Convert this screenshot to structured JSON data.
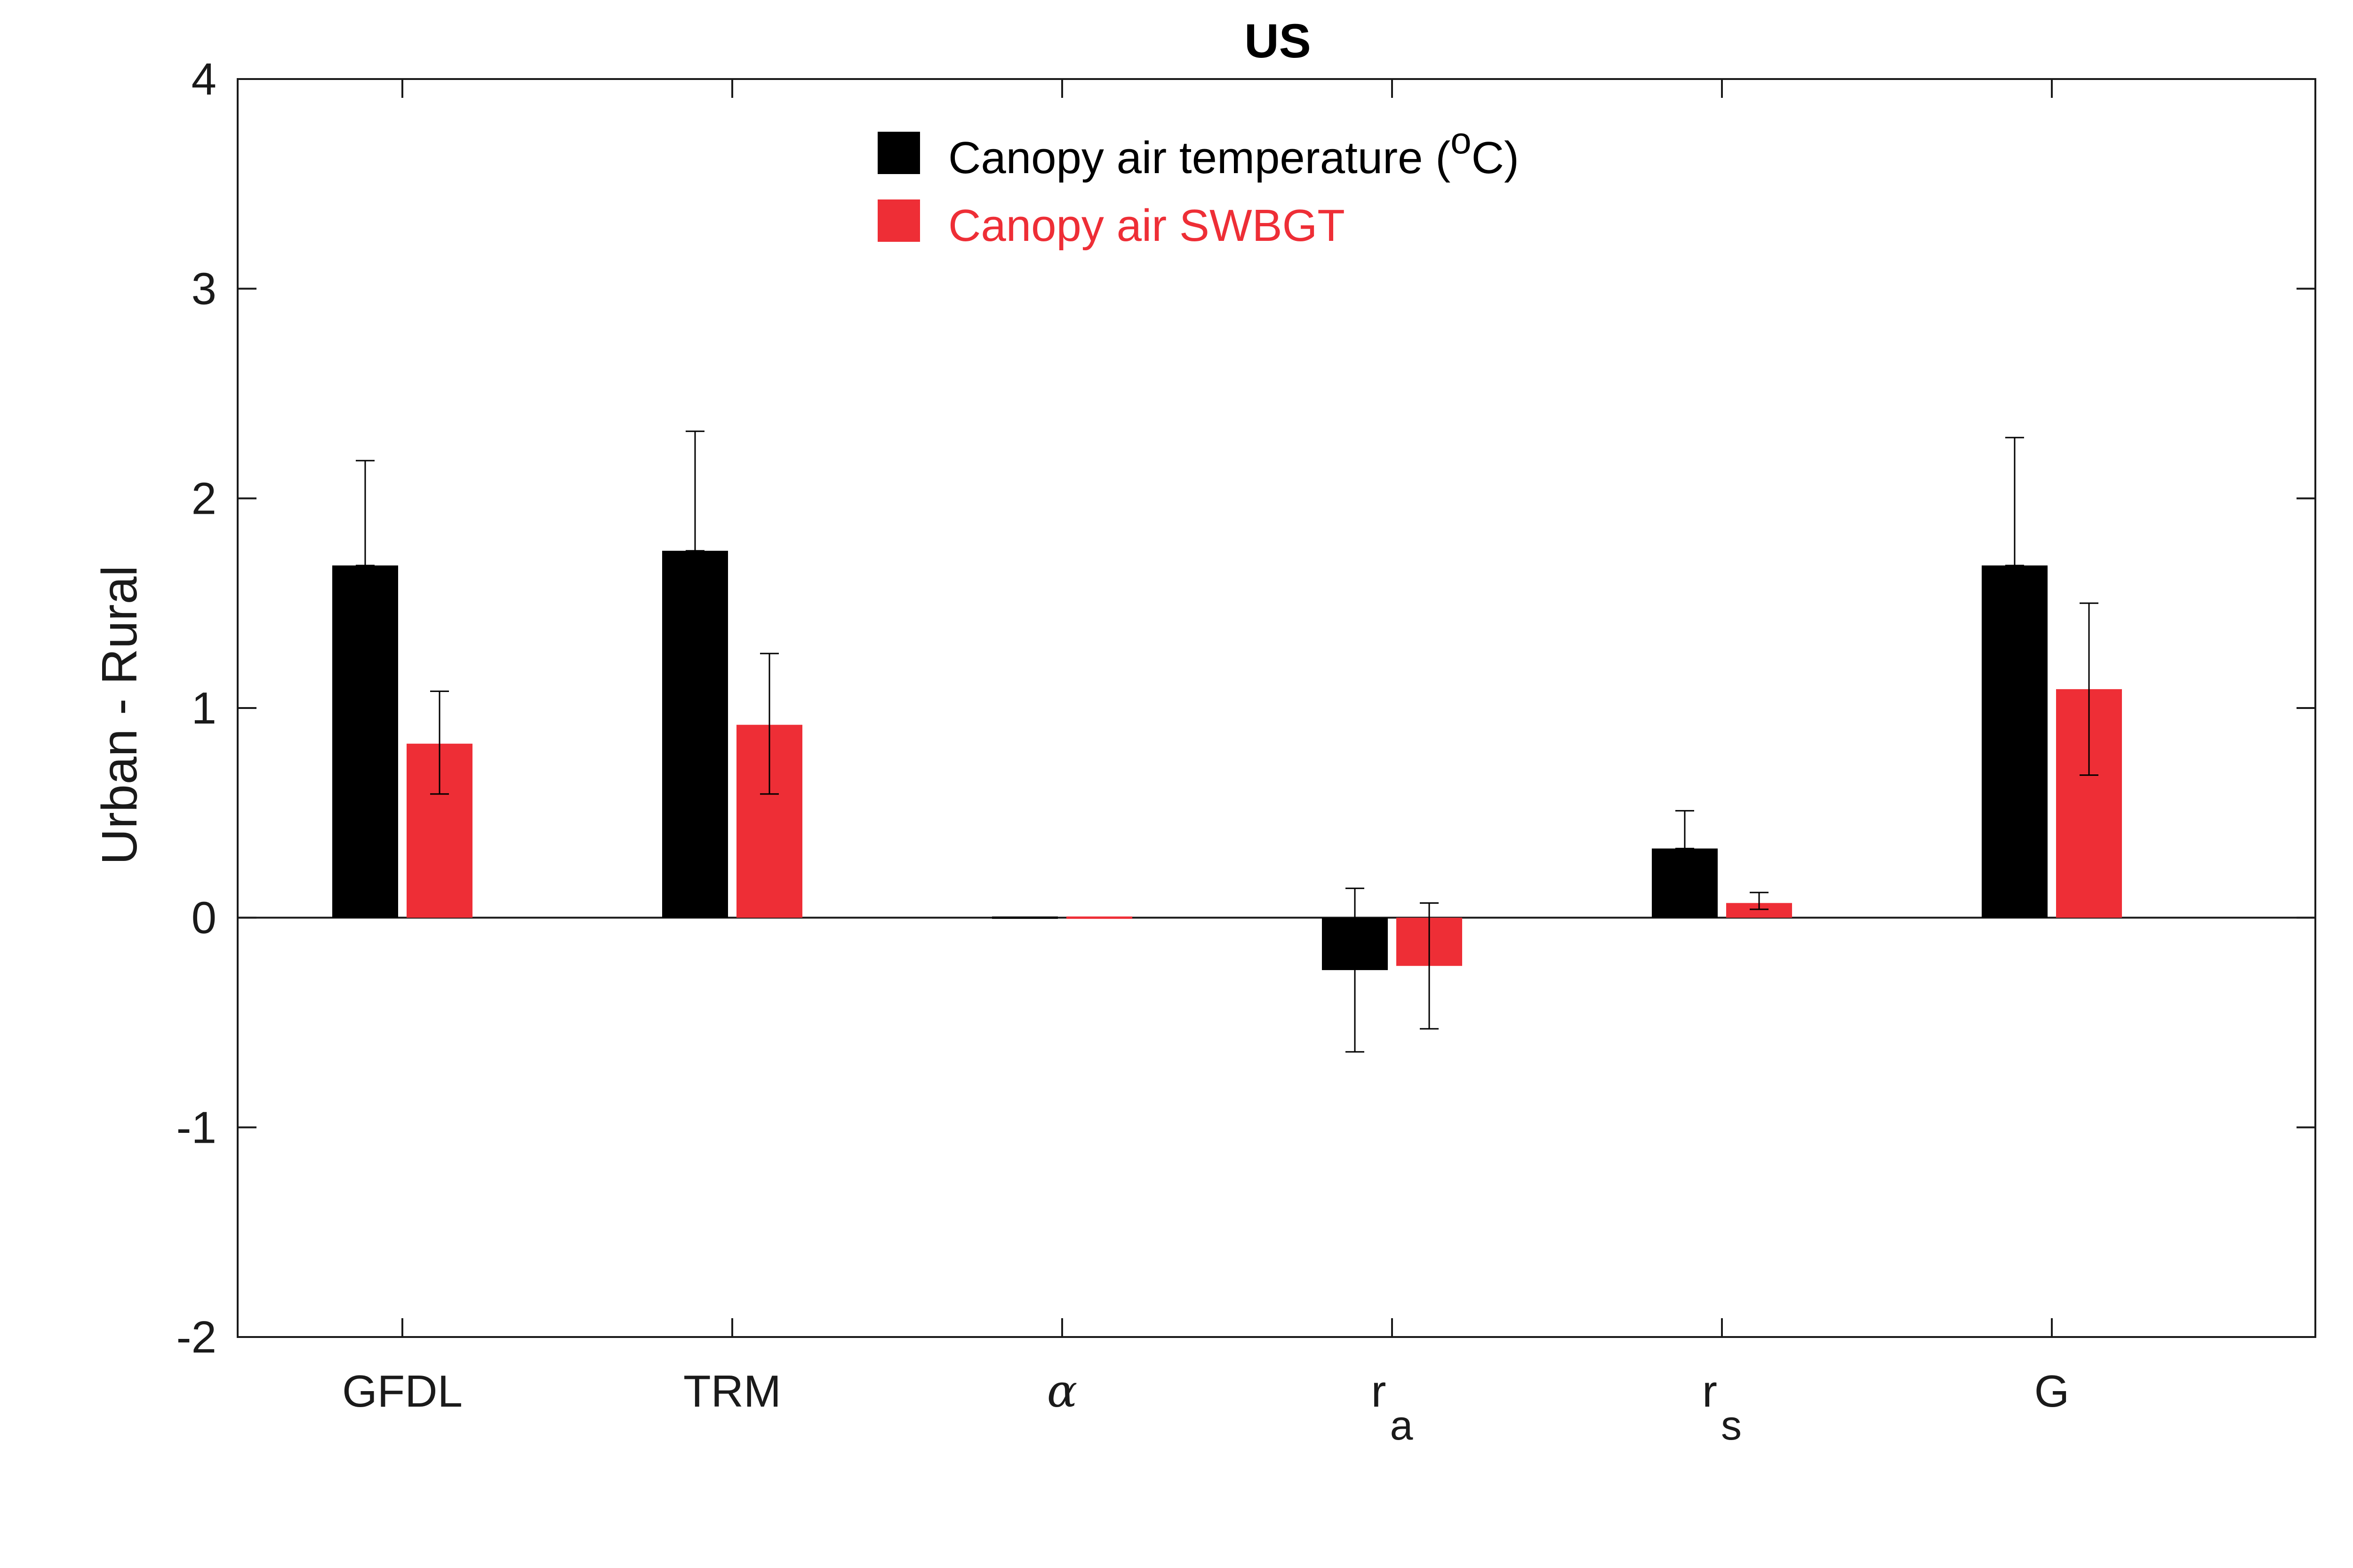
{
  "chart_data": {
    "type": "bar",
    "title": "US",
    "xlabel": "",
    "ylabel": "Urban - Rural",
    "ylim": [
      -2,
      4
    ],
    "yticks": [
      "-2",
      "-1",
      "0",
      "1",
      "2",
      "3",
      "4"
    ],
    "categories": [
      {
        "base": "GFDL",
        "sub": ""
      },
      {
        "base": "TRM",
        "sub": ""
      },
      {
        "base": "α",
        "sub": "",
        "italic": true
      },
      {
        "base": "r",
        "sub": "a"
      },
      {
        "base": "r",
        "sub": "s"
      },
      {
        "base": "G",
        "sub": ""
      }
    ],
    "series": [
      {
        "name": "Canopy air temperature (oC)",
        "legend": {
          "main": "Canopy air temperature (",
          "sup": "o",
          "tail": "C)"
        },
        "color": "#000000",
        "values": [
          1.68,
          1.75,
          0.0,
          -0.25,
          0.33,
          1.68
        ],
        "err_upper": [
          2.18,
          2.32,
          0.0,
          0.14,
          0.51,
          2.29
        ],
        "err_lower": [
          1.68,
          1.75,
          0.0,
          -0.64,
          0.33,
          1.68
        ]
      },
      {
        "name": "Canopy air SWBGT",
        "legend": {
          "main": "Canopy air SWBGT",
          "sup": "",
          "tail": ""
        },
        "color": "#ee2e36",
        "values": [
          0.83,
          0.92,
          0.0,
          -0.23,
          0.07,
          1.09
        ],
        "err_upper": [
          1.08,
          1.26,
          0.0,
          0.07,
          0.12,
          1.5
        ],
        "err_lower": [
          0.59,
          0.59,
          0.0,
          -0.53,
          0.04,
          0.68
        ]
      }
    ],
    "legend_position": "top-center",
    "grid": false
  }
}
